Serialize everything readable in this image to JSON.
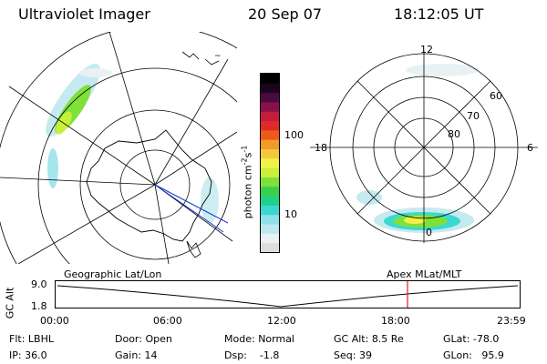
{
  "header": {
    "title": "Ultraviolet Imager",
    "date": "20 Sep 07",
    "time": "18:12:05 UT"
  },
  "colorbar": {
    "label": "photon cm",
    "label_sup1": "-2",
    "label_mid": "s",
    "label_sup2": "-1",
    "ticks": [
      "100",
      "10"
    ],
    "scale": "log",
    "colors": [
      "#dddddd",
      "#e9f1f5",
      "#bfe8ee",
      "#8fe0e8",
      "#3ad8d0",
      "#22d08a",
      "#39d04a",
      "#7fe03a",
      "#c8f03a",
      "#f2f04a",
      "#f2c83a",
      "#f29a2a",
      "#ee5a1a",
      "#e02a2a",
      "#c41c3c",
      "#8a104a",
      "#4a0a3c",
      "#1a0420",
      "#000000"
    ]
  },
  "left_map": {
    "caption": "Geographic Lat/Lon"
  },
  "right_map": {
    "caption": "Apex MLat/MLT",
    "mlt_labels": [
      "12",
      "18",
      "6",
      "0"
    ],
    "lat_labels": [
      "60",
      "70",
      "80"
    ]
  },
  "timeline": {
    "ylabel": "GC Alt",
    "y_ticks": [
      "9.0",
      "1.8"
    ],
    "x_ticks": [
      "00:00",
      "06:00",
      "12:00",
      "18:00",
      "23:59"
    ],
    "marker_color": "#e02020"
  },
  "info": {
    "flt_label": "Flt:",
    "flt_value": "LBHL",
    "ip_label": "IP:",
    "ip_value": "36.0",
    "door_label": "Door:",
    "door_value": "Open",
    "gain_label": "Gain:",
    "gain_value": "14",
    "mode_label": "Mode:",
    "mode_value": "Normal",
    "dsp_label": "Dsp:",
    "dsp_value": "-1.8",
    "gcalt_label": "GC Alt:",
    "gcalt_value": "8.5 Re",
    "seq_label": "Seq:",
    "seq_value": "39",
    "glat_label": "GLat:",
    "glat_value": "-78.0",
    "glon_label": "GLon:",
    "glon_value": "95.9"
  }
}
